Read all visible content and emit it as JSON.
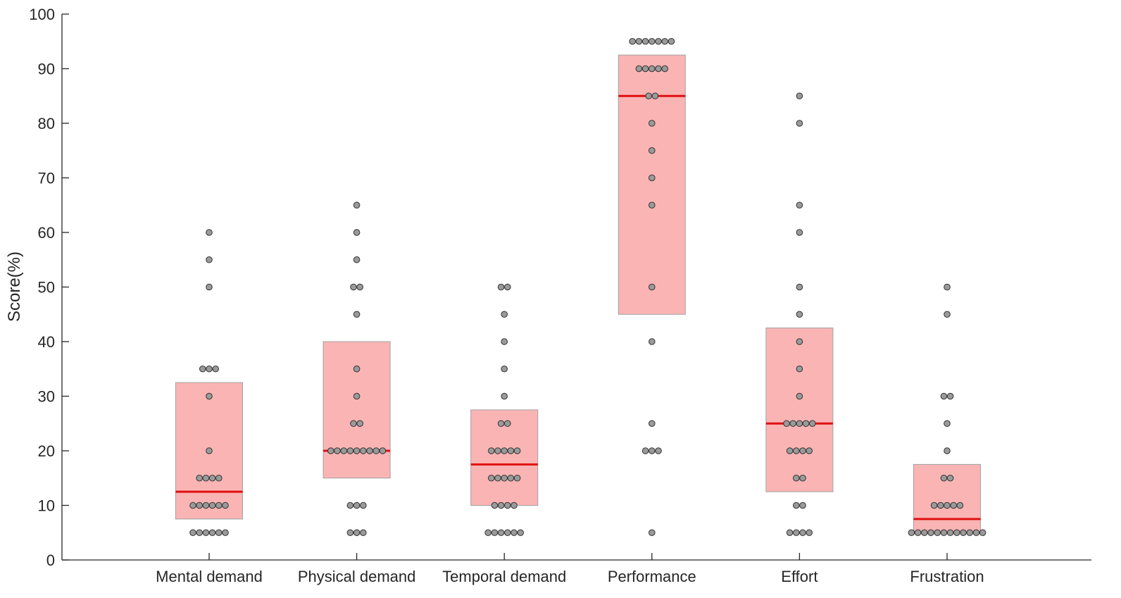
{
  "chart_data": {
    "type": "box",
    "ylabel": "Score(%)",
    "ylim": [
      0,
      100
    ],
    "yticks": [
      0,
      10,
      20,
      30,
      40,
      50,
      60,
      70,
      80,
      90,
      100
    ],
    "grid": false,
    "colors": {
      "box": "#fbb4b4",
      "median": "#e01010",
      "dot": "#9a9a9a"
    },
    "categories": [
      "Mental demand",
      "Physical demand",
      "Temporal demand",
      "Performance",
      "Effort",
      "Frustration"
    ],
    "groups": [
      {
        "q1": 7.5,
        "median": 12.5,
        "q3": 32.5,
        "points": [
          5,
          5,
          5,
          5,
          5,
          5,
          10,
          10,
          10,
          10,
          10,
          10,
          15,
          15,
          15,
          15,
          20,
          30,
          35,
          35,
          35,
          50,
          55,
          60
        ]
      },
      {
        "q1": 15,
        "median": 20,
        "q3": 40,
        "points": [
          5,
          5,
          5,
          10,
          10,
          10,
          20,
          20,
          20,
          20,
          20,
          20,
          20,
          20,
          20,
          25,
          25,
          30,
          35,
          45,
          50,
          50,
          55,
          60,
          65
        ]
      },
      {
        "q1": 10,
        "median": 17.5,
        "q3": 27.5,
        "points": [
          5,
          5,
          5,
          5,
          5,
          5,
          10,
          10,
          10,
          10,
          15,
          15,
          15,
          15,
          15,
          20,
          20,
          20,
          20,
          20,
          25,
          25,
          30,
          35,
          40,
          45,
          50,
          50
        ]
      },
      {
        "q1": 45,
        "median": 85,
        "q3": 92.5,
        "points": [
          5,
          20,
          20,
          20,
          25,
          40,
          50,
          65,
          70,
          75,
          80,
          85,
          85,
          90,
          90,
          90,
          90,
          90,
          95,
          95,
          95,
          95,
          95,
          95,
          95
        ]
      },
      {
        "q1": 12.5,
        "median": 25,
        "q3": 42.5,
        "points": [
          5,
          5,
          5,
          5,
          10,
          10,
          15,
          15,
          20,
          20,
          20,
          20,
          25,
          25,
          25,
          25,
          25,
          30,
          35,
          40,
          45,
          50,
          60,
          65,
          80,
          85
        ]
      },
      {
        "q1": 5,
        "median": 7.5,
        "q3": 17.5,
        "points": [
          5,
          5,
          5,
          5,
          5,
          5,
          5,
          5,
          5,
          5,
          5,
          5,
          10,
          10,
          10,
          10,
          10,
          15,
          15,
          20,
          25,
          30,
          30,
          45,
          50
        ]
      }
    ]
  }
}
